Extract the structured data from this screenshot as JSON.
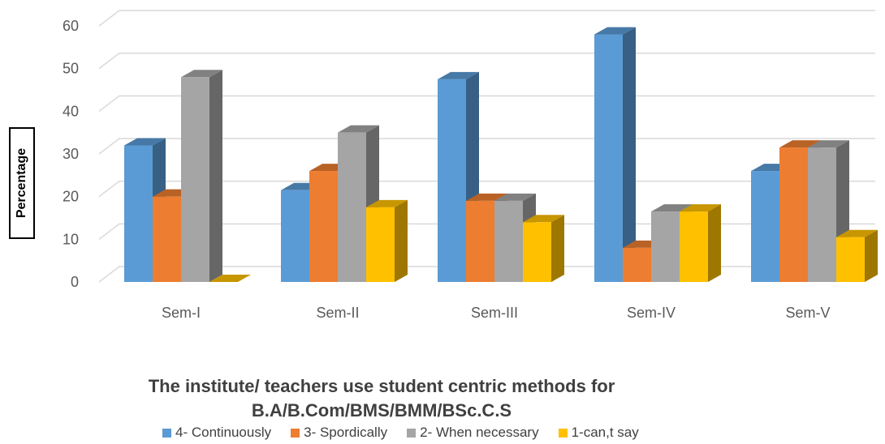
{
  "chart_data": {
    "type": "bar",
    "title_line1": "The institute/ teachers use student centric methods for",
    "title_line2": "B.A/B.Com/BMS/BMM/BSc.C.S",
    "ylabel": "Percentage",
    "ylim": [
      0,
      60
    ],
    "yticks": [
      "0",
      "10",
      "20",
      "30",
      "40",
      "50",
      "60"
    ],
    "categories": [
      "Sem-I",
      "Sem-II",
      "Sem-III",
      "Sem-IV",
      "Sem-V"
    ],
    "series": [
      {
        "name": "4- Continuously",
        "color": "#5B9BD5",
        "values": [
          32,
          21.5,
          47.5,
          58,
          26
        ]
      },
      {
        "name": "3- Spordically",
        "color": "#ED7D31",
        "values": [
          20,
          26,
          19,
          8,
          31.5
        ]
      },
      {
        "name": "2- When necessary",
        "color": "#A5A5A5",
        "values": [
          48,
          35,
          19,
          16.5,
          31.5
        ]
      },
      {
        "name": "1-can,t say",
        "color": "#FFC000",
        "values": [
          0,
          17.5,
          14,
          16.5,
          10.5
        ]
      }
    ],
    "grid": true,
    "legend_position": "bottom"
  }
}
